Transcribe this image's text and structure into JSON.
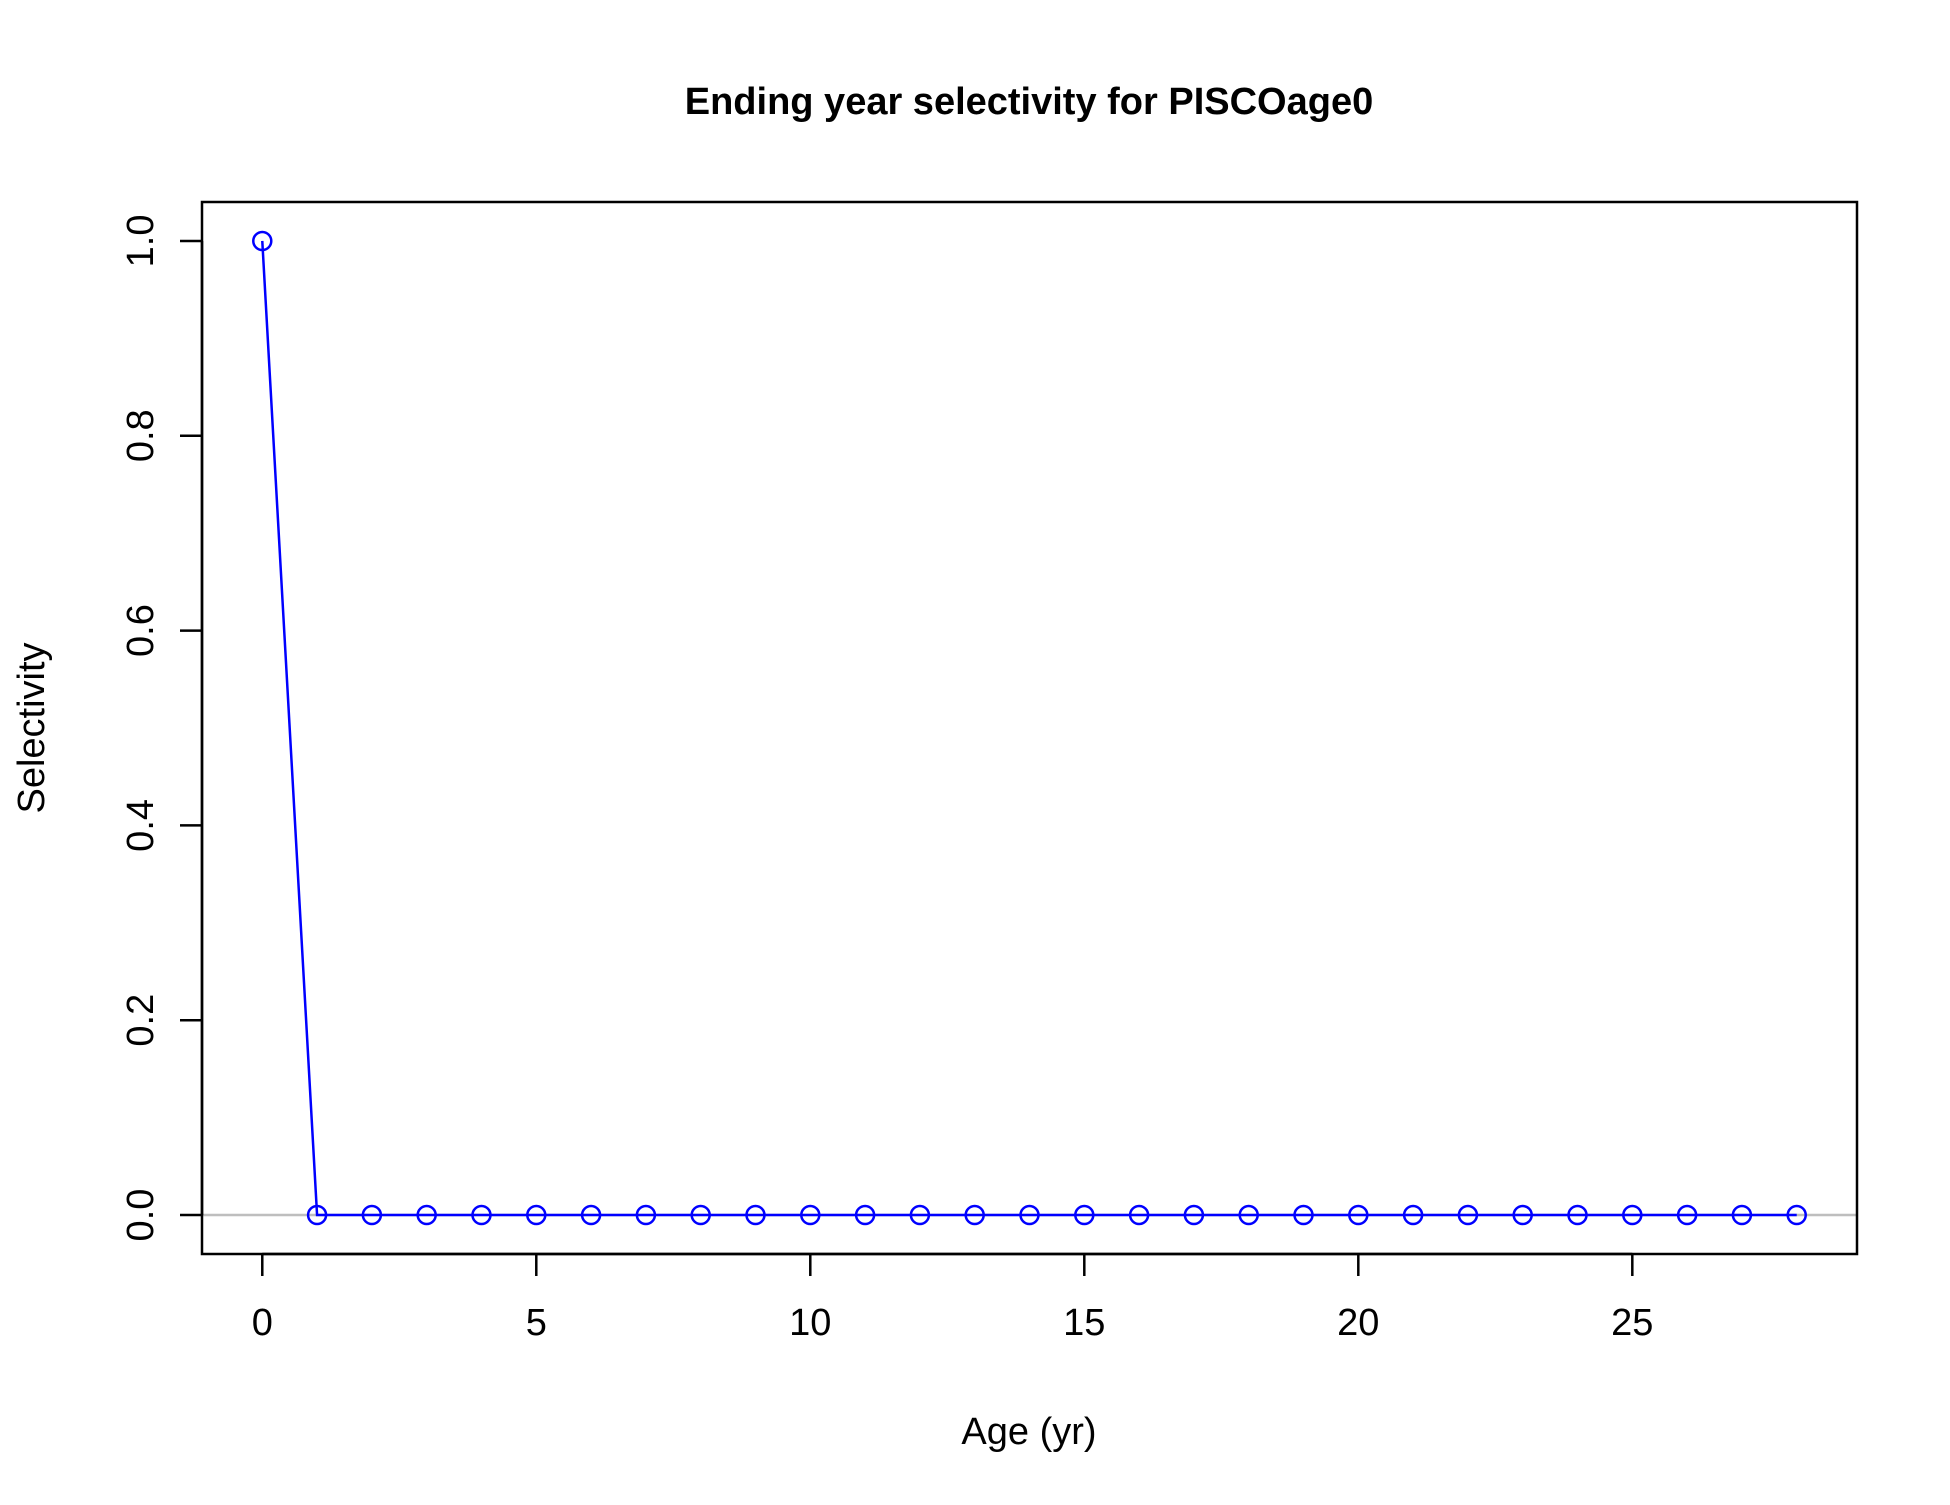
{
  "chart_data": {
    "type": "line",
    "title": "Ending year selectivity for PISCOage0",
    "xlabel": "Age (yr)",
    "ylabel": "Selectivity",
    "xlim": [
      -1.1,
      29.1
    ],
    "ylim": [
      -0.04,
      1.04
    ],
    "x_ticks": [
      0,
      5,
      10,
      15,
      20,
      25
    ],
    "x_tick_labels": [
      "0",
      "5",
      "10",
      "15",
      "20",
      "25"
    ],
    "y_ticks": [
      0,
      0.2,
      0.4,
      0.6,
      0.8,
      1.0
    ],
    "y_tick_labels": [
      "0.0",
      "0.2",
      "0.4",
      "0.6",
      "0.8",
      "1.0"
    ],
    "grid": false,
    "reference_line": {
      "y": 0,
      "color": "#bebebe"
    },
    "series": [
      {
        "color": "#0000ff",
        "marker": "open-circle",
        "x": [
          0,
          1,
          2,
          3,
          4,
          5,
          6,
          7,
          8,
          9,
          10,
          11,
          12,
          13,
          14,
          15,
          16,
          17,
          18,
          19,
          20,
          21,
          22,
          23,
          24,
          25,
          26,
          27,
          28
        ],
        "y": [
          1.0,
          0,
          0,
          0,
          0,
          0,
          0,
          0,
          0,
          0,
          0,
          0,
          0,
          0,
          0,
          0,
          0,
          0,
          0,
          0,
          0,
          0,
          0,
          0,
          0,
          0,
          0,
          0,
          0
        ]
      }
    ]
  }
}
